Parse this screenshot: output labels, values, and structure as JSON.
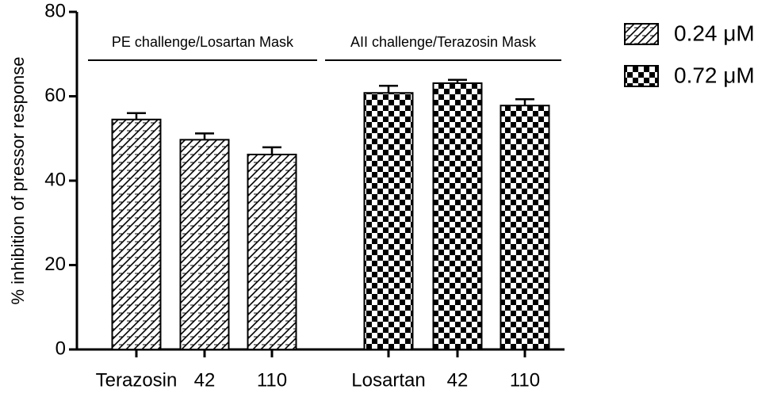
{
  "chart_data": {
    "type": "bar",
    "ylabel": "% inhibition of pressor response",
    "categories": [
      "Terazosin",
      "42",
      "110",
      "Losartan",
      "42",
      "110"
    ],
    "series": [
      {
        "name": "0.24 μM",
        "color": "#000000",
        "pattern": "hatch",
        "values": [
          54.5,
          49.7,
          46.2,
          null,
          null,
          null
        ],
        "errors": [
          1.5,
          1.5,
          1.7,
          null,
          null,
          null
        ]
      },
      {
        "name": "0.72 μM",
        "color": "#000000",
        "pattern": "checker",
        "values": [
          null,
          null,
          null,
          60.8,
          63.1,
          57.8
        ],
        "errors": [
          null,
          null,
          null,
          1.7,
          0.8,
          1.5
        ]
      }
    ],
    "annotations": [
      "PE challenge/Losartan Mask",
      "AII challenge/Terazosin Mask"
    ],
    "ylim": [
      0,
      80
    ],
    "yticks": [
      0,
      20,
      40,
      60,
      80
    ],
    "grid": false
  }
}
